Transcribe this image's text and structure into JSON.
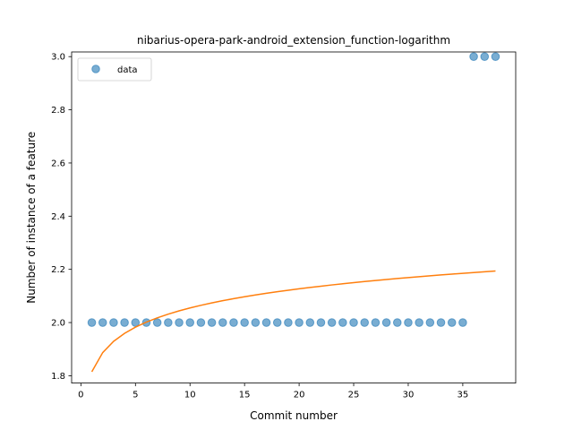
{
  "chart_data": {
    "type": "scatter",
    "title": "nibarius-opera-park-android_extension_function-logarithm",
    "xlabel": "Commit number",
    "ylabel": "Number of instance of a feature",
    "xlim": [
      -0.85,
      39.85
    ],
    "ylim": [
      1.7725,
      3.0175
    ],
    "xticks": [
      0,
      5,
      10,
      15,
      20,
      25,
      30,
      35
    ],
    "yticks": [
      1.8,
      2.0,
      2.2,
      2.4,
      2.6,
      2.8,
      3.0
    ],
    "ytick_labels": [
      "1.8",
      "2.0",
      "2.2",
      "2.4",
      "2.6",
      "2.8",
      "3.0"
    ],
    "grid": false,
    "legend_position": "upper-left",
    "scatter_color": "#1f77b4",
    "line_color": "#ff7f0e",
    "series": [
      {
        "name": "data",
        "kind": "scatter",
        "x": [
          1,
          2,
          3,
          4,
          5,
          6,
          7,
          8,
          9,
          10,
          11,
          12,
          13,
          14,
          15,
          16,
          17,
          18,
          19,
          20,
          21,
          22,
          23,
          24,
          25,
          26,
          27,
          28,
          29,
          30,
          31,
          32,
          33,
          34,
          35,
          36,
          37,
          38
        ],
        "y": [
          2,
          2,
          2,
          2,
          2,
          2,
          2,
          2,
          2,
          2,
          2,
          2,
          2,
          2,
          2,
          2,
          2,
          2,
          2,
          2,
          2,
          2,
          2,
          2,
          2,
          2,
          2,
          2,
          2,
          2,
          2,
          2,
          2,
          2,
          2,
          3,
          3,
          3
        ]
      },
      {
        "kind": "line",
        "x": [
          1,
          2,
          3,
          4,
          5,
          6,
          7,
          8,
          9,
          10,
          11,
          12,
          13,
          14,
          15,
          16,
          17,
          18,
          19,
          20,
          21,
          22,
          23,
          24,
          25,
          26,
          27,
          28,
          29,
          30,
          31,
          32,
          33,
          34,
          35,
          36,
          37,
          38
        ],
        "y": [
          1.815,
          1.8872,
          1.9295,
          1.9594,
          1.9827,
          2.0017,
          2.0177,
          2.0316,
          2.0439,
          2.0549,
          2.0648,
          2.0739,
          2.0822,
          2.0899,
          2.0971,
          2.1038,
          2.1101,
          2.116,
          2.1216,
          2.1269,
          2.132,
          2.1368,
          2.1415,
          2.1459,
          2.1501,
          2.1542,
          2.1581,
          2.1619,
          2.1656,
          2.1691,
          2.1725,
          2.1758,
          2.179,
          2.1822,
          2.1852,
          2.1881,
          2.191,
          2.1938
        ]
      }
    ]
  }
}
